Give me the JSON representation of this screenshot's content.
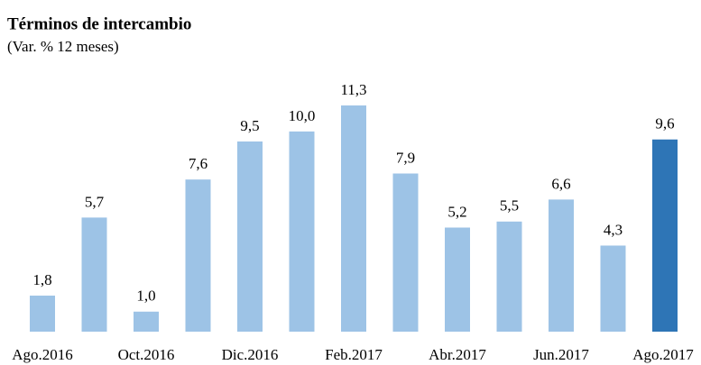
{
  "chart_data": {
    "type": "bar",
    "title": "Términos de intercambio",
    "subtitle": "(Var. % 12 meses)",
    "categories": [
      "Ago.2016",
      null,
      "Oct.2016",
      null,
      "Dic.2016",
      null,
      "Feb.2017",
      null,
      "Abr.2017",
      null,
      "Jun.2017",
      null,
      "Ago.2017"
    ],
    "values": [
      1.8,
      5.7,
      1.0,
      7.6,
      9.5,
      10.0,
      11.3,
      7.9,
      5.2,
      5.5,
      6.6,
      4.3,
      9.6
    ],
    "value_labels": [
      "1,8",
      "5,7",
      "1,0",
      "7,6",
      "9,5",
      "10,0",
      "11,3",
      "7,9",
      "5,2",
      "5,5",
      "6,6",
      "4,3",
      "9,6"
    ],
    "colors": [
      "#9dc3e6",
      "#9dc3e6",
      "#9dc3e6",
      "#9dc3e6",
      "#9dc3e6",
      "#9dc3e6",
      "#9dc3e6",
      "#9dc3e6",
      "#9dc3e6",
      "#9dc3e6",
      "#9dc3e6",
      "#9dc3e6",
      "#2e75b6"
    ]
  }
}
